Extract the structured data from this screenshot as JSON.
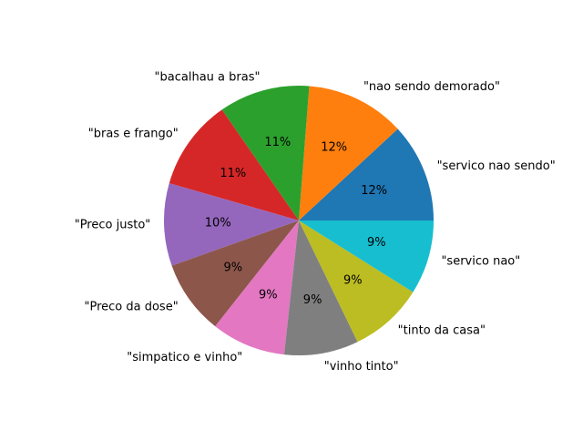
{
  "chart_data": {
    "type": "pie",
    "title": "",
    "categories": [
      "\"servico nao sendo\"",
      "\"nao sendo demorado\"",
      "\"bacalhau a bras\"",
      "\"bras e frango\"",
      "\"Preco justo\"",
      "\"Preco da dose\"",
      "\"simpatico e vinho\"",
      "\"vinho tinto\"",
      "\"tinto da casa\"",
      "\"servico nao\""
    ],
    "values": [
      12,
      12,
      11,
      11,
      10,
      9,
      9,
      9,
      9,
      9
    ],
    "percent_labels": [
      "12%",
      "12%",
      "11%",
      "11%",
      "10%",
      "9%",
      "9%",
      "9%",
      "9%",
      "9%"
    ],
    "colors": [
      "#1f77b4",
      "#ff7f0e",
      "#2ca02c",
      "#d62728",
      "#9467bd",
      "#8c564b",
      "#e377c2",
      "#7f7f7f",
      "#bcbd22",
      "#17becf"
    ],
    "start_angle_deg": 0,
    "direction": "counterclockwise",
    "legend": "none"
  }
}
